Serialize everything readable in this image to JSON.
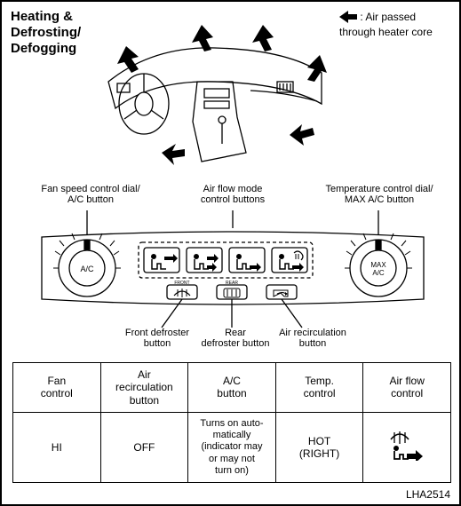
{
  "title_lines": [
    "Heating &",
    "Defrosting/",
    "Defogging"
  ],
  "legend": {
    "text": ": Air passed through heater core"
  },
  "panel_labels": {
    "fan_dial": "Fan speed control dial/\nA/C button",
    "mode_buttons": "Air flow mode\ncontrol buttons",
    "temp_dial": "Temperature control dial/\nMAX A/C button",
    "front_defrost": "Front defroster\nbutton",
    "rear_defrost": "Rear\ndefroster button",
    "recirc": "Air recirculation\nbutton"
  },
  "dial_text": {
    "left": "A/C",
    "right_top": "MAX",
    "right_bot": "A/C"
  },
  "table": {
    "headers": [
      "Fan\ncontrol",
      "Air\nrecirculation\nbutton",
      "A/C\nbutton",
      "Temp.\ncontrol",
      "Air flow\ncontrol"
    ],
    "row": [
      "HI",
      "OFF",
      "Turns on auto-\nmatically\n(indicator may\nor may not\nturn on)",
      "HOT\n(RIGHT)",
      "ICON"
    ]
  },
  "figure_ref": "LHA2514",
  "colors": {
    "stroke": "#000000",
    "bg": "#ffffff",
    "fill_solid": "#000000"
  },
  "styling": {
    "border_width": 2,
    "table_border_width": 1.5,
    "title_fontsize": 15,
    "label_fontsize": 11,
    "cell_fontsize": 12
  }
}
